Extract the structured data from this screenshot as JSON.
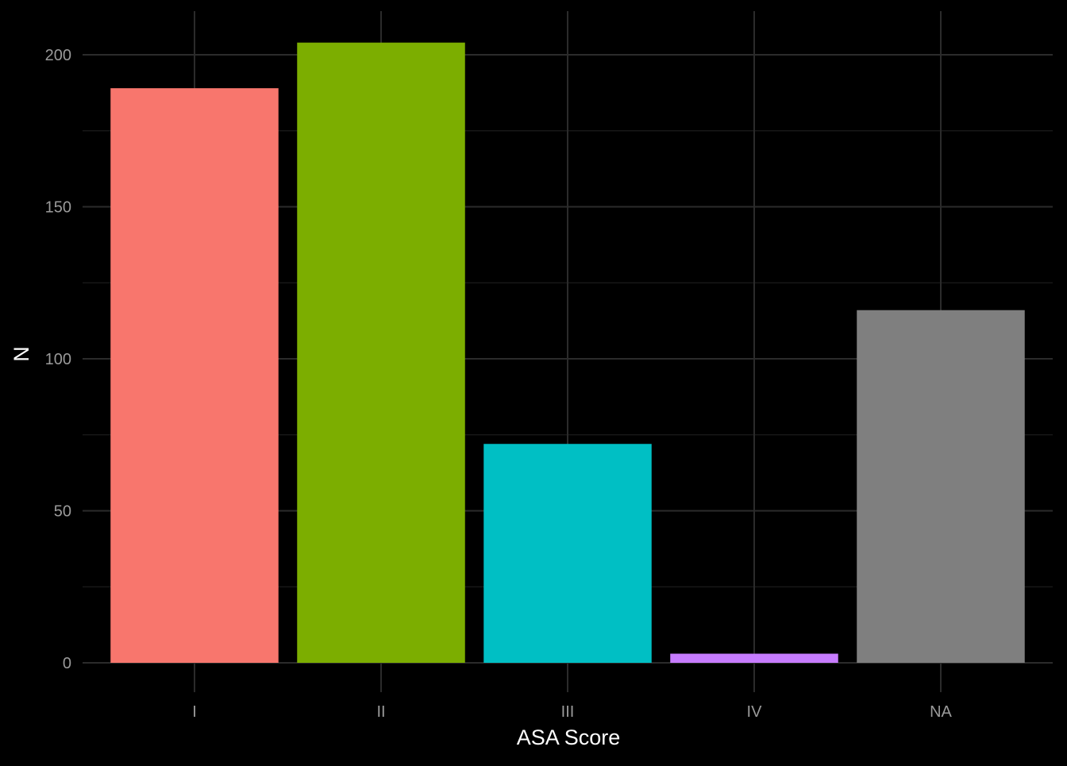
{
  "chart_data": {
    "type": "bar",
    "title": "",
    "xlabel": "ASA Score",
    "ylabel": "N",
    "categories": [
      "I",
      "II",
      "III",
      "IV",
      "NA"
    ],
    "values": [
      189,
      204,
      72,
      3,
      116
    ],
    "colors": [
      "#F8766D",
      "#7CAE00",
      "#00BFC4",
      "#C77CFF",
      "#7F7F7F"
    ],
    "ylim": [
      0,
      214
    ],
    "yticks": [
      0,
      50,
      100,
      150,
      200
    ],
    "ytick_labels": [
      "0",
      "50",
      "100",
      "150",
      "200"
    ],
    "grid": true,
    "legend": "none",
    "background": "#000000",
    "grid_color": "#2b2b2b"
  }
}
